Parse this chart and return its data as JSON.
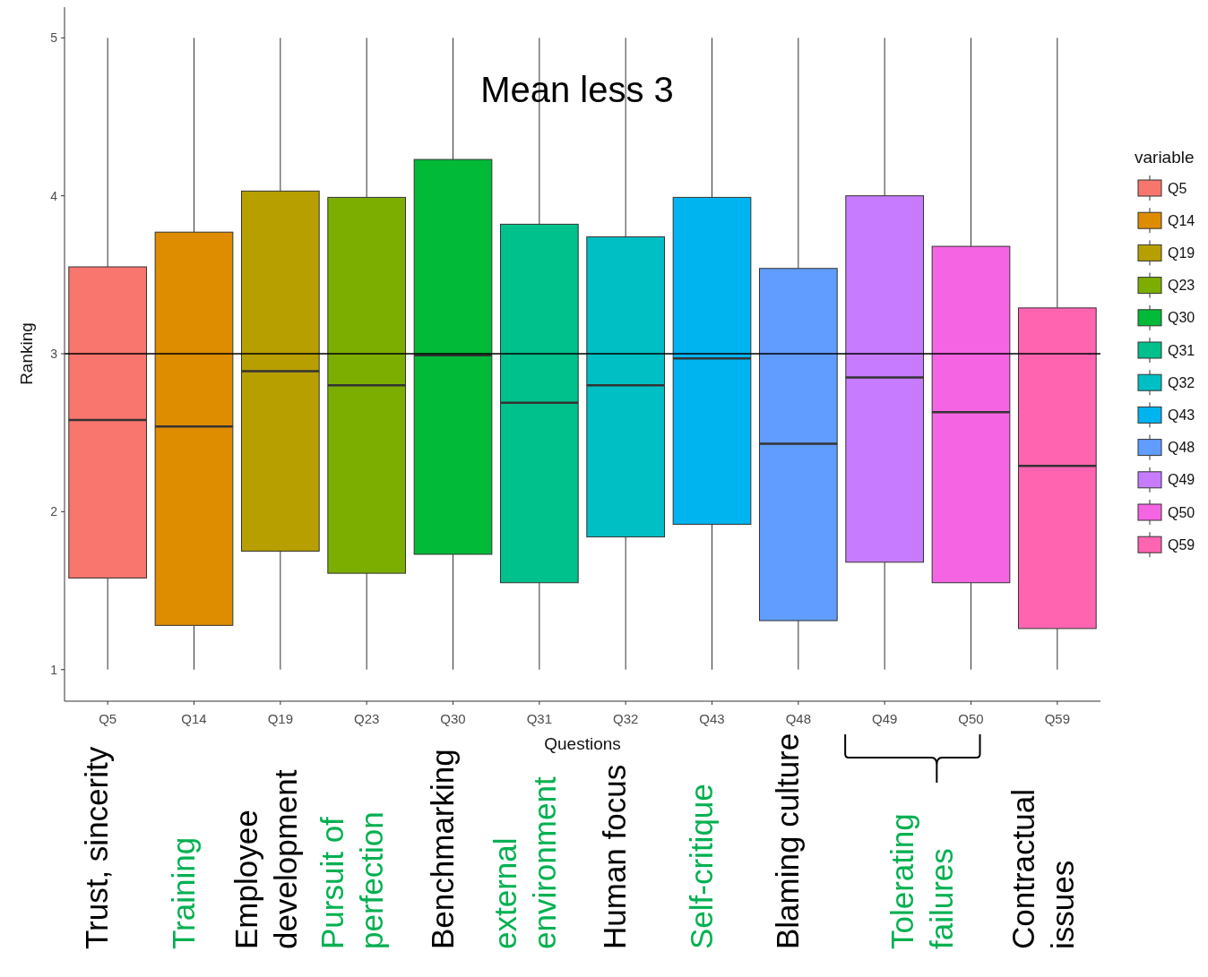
{
  "chart_data": {
    "type": "box",
    "xlabel": "Questions",
    "ylabel": "Ranking",
    "legend_title": "variable",
    "legend": "right",
    "grid": false,
    "categories": [
      "Q5",
      "Q14",
      "Q19",
      "Q23",
      "Q30",
      "Q31",
      "Q32",
      "Q43",
      "Q48",
      "Q49",
      "Q50",
      "Q59"
    ],
    "series": [
      {
        "name": "Q5",
        "color": "#f8766d",
        "boxes": [
          {
            "low": 1,
            "q1": 1.58,
            "median": 2.58,
            "q3": 3.55,
            "high": 5
          },
          null,
          null,
          null,
          null,
          null,
          null,
          null,
          null,
          null,
          null,
          null
        ]
      },
      {
        "name": "Q14",
        "color": "#de8c00",
        "boxes": [
          null,
          {
            "low": 1,
            "q1": 1.28,
            "median": 2.54,
            "q3": 3.77,
            "high": 5
          },
          null,
          null,
          null,
          null,
          null,
          null,
          null,
          null,
          null,
          null
        ]
      },
      {
        "name": "Q19",
        "color": "#b79f00",
        "boxes": [
          null,
          null,
          {
            "low": 1,
            "q1": 1.75,
            "median": 2.89,
            "q3": 4.03,
            "high": 5
          },
          null,
          null,
          null,
          null,
          null,
          null,
          null,
          null,
          null
        ]
      },
      {
        "name": "Q23",
        "color": "#7cae00",
        "boxes": [
          null,
          null,
          null,
          {
            "low": 1,
            "q1": 1.61,
            "median": 2.8,
            "q3": 3.99,
            "high": 5
          },
          null,
          null,
          null,
          null,
          null,
          null,
          null,
          null
        ]
      },
      {
        "name": "Q30",
        "color": "#00ba38",
        "boxes": [
          null,
          null,
          null,
          null,
          {
            "low": 1,
            "q1": 1.73,
            "median": 2.99,
            "q3": 4.23,
            "high": 5
          },
          null,
          null,
          null,
          null,
          null,
          null,
          null
        ]
      },
      {
        "name": "Q31",
        "color": "#00c08b",
        "boxes": [
          null,
          null,
          null,
          null,
          null,
          {
            "low": 1,
            "q1": 1.55,
            "median": 2.69,
            "q3": 3.82,
            "high": 5
          },
          null,
          null,
          null,
          null,
          null,
          null
        ]
      },
      {
        "name": "Q32",
        "color": "#00bfc4",
        "boxes": [
          null,
          null,
          null,
          null,
          null,
          null,
          {
            "low": 1,
            "q1": 1.84,
            "median": 2.8,
            "q3": 3.74,
            "high": 5
          },
          null,
          null,
          null,
          null,
          null
        ]
      },
      {
        "name": "Q43",
        "color": "#00b4f0",
        "boxes": [
          null,
          null,
          null,
          null,
          null,
          null,
          null,
          {
            "low": 1,
            "q1": 1.92,
            "median": 2.97,
            "q3": 3.99,
            "high": 5
          },
          null,
          null,
          null,
          null
        ]
      },
      {
        "name": "Q48",
        "color": "#619cff",
        "boxes": [
          null,
          null,
          null,
          null,
          null,
          null,
          null,
          null,
          {
            "low": 1,
            "q1": 1.31,
            "median": 2.43,
            "q3": 3.54,
            "high": 5
          },
          null,
          null,
          null
        ]
      },
      {
        "name": "Q49",
        "color": "#c77cff",
        "boxes": [
          null,
          null,
          null,
          null,
          null,
          null,
          null,
          null,
          null,
          {
            "low": 1,
            "q1": 1.68,
            "median": 2.85,
            "q3": 4,
            "high": 5
          },
          null,
          null
        ]
      },
      {
        "name": "Q50",
        "color": "#f564e3",
        "boxes": [
          null,
          null,
          null,
          null,
          null,
          null,
          null,
          null,
          null,
          null,
          {
            "low": 1,
            "q1": 1.55,
            "median": 2.63,
            "q3": 3.68,
            "high": 5
          },
          null
        ]
      },
      {
        "name": "Q59",
        "color": "#ff64b0",
        "boxes": [
          null,
          null,
          null,
          null,
          null,
          null,
          null,
          null,
          null,
          null,
          null,
          {
            "low": 1,
            "q1": 1.26,
            "median": 2.29,
            "q3": 3.29,
            "high": 5
          }
        ]
      }
    ],
    "ylim": [
      0.8,
      5.2
    ],
    "yticks": [
      1,
      2,
      3,
      4,
      5
    ],
    "ref_lines": [
      {
        "axis": "y",
        "value": 3,
        "color": "#000000"
      }
    ],
    "annotations": [
      "Mean less 3",
      "Trust, sincerity",
      "Training",
      "Employee\ndevelopment",
      "Pursuit of\nperfection",
      "Benchmarking",
      "external\nenvironment",
      "Human focus",
      "Self-critique",
      "Blaming culture",
      "Tolerating\nfailures",
      "Contractual\nissues"
    ]
  }
}
